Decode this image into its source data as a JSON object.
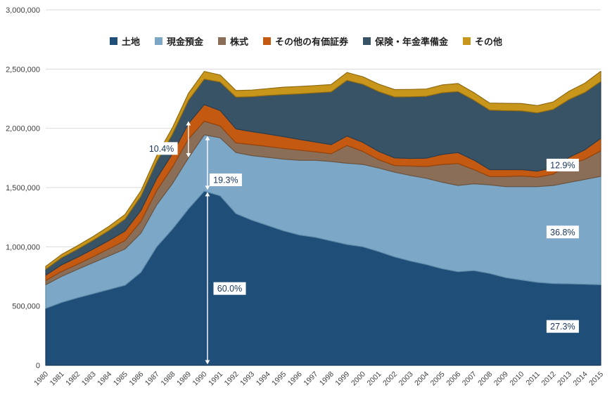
{
  "chart_data": {
    "type": "area",
    "stacked": true,
    "title": "",
    "xlabel": "",
    "ylabel": "",
    "grid": "horizontal",
    "legend_position": "top",
    "ylim": [
      0,
      3000000
    ],
    "yticks": [
      {
        "value": 0,
        "label": "0"
      },
      {
        "value": 500000,
        "label": "500,000"
      },
      {
        "value": 1000000,
        "label": "1,000,000"
      },
      {
        "value": 1500000,
        "label": "1,500,000"
      },
      {
        "value": 2000000,
        "label": "2,000,000"
      },
      {
        "value": 2500000,
        "label": "2,500,000"
      },
      {
        "value": 3000000,
        "label": "3,000,000"
      }
    ],
    "x": [
      1980,
      1981,
      1982,
      1983,
      1984,
      1985,
      1986,
      1987,
      1988,
      1989,
      1990,
      1991,
      1992,
      1993,
      1994,
      1995,
      1996,
      1997,
      1998,
      1999,
      2000,
      2001,
      2002,
      2003,
      2004,
      2005,
      2006,
      2007,
      2008,
      2009,
      2010,
      2011,
      2012,
      2013,
      2014,
      2015
    ],
    "series": [
      {
        "name": "土地",
        "key": "land",
        "color": "#1f4e79",
        "edge": "#16395a",
        "values": [
          480000,
          530000,
          570000,
          605000,
          640000,
          675000,
          785000,
          1000000,
          1150000,
          1320000,
          1470000,
          1430000,
          1280000,
          1225000,
          1180000,
          1135000,
          1100000,
          1080000,
          1050000,
          1020000,
          1000000,
          960000,
          915000,
          880000,
          850000,
          815000,
          790000,
          800000,
          775000,
          740000,
          720000,
          700000,
          690000,
          688000,
          684000,
          680000
        ]
      },
      {
        "name": "現金預金",
        "key": "cash-deposits",
        "color": "#7da7c6",
        "edge": "#5f8cab",
        "values": [
          200000,
          220000,
          240000,
          262000,
          284000,
          306000,
          330000,
          355000,
          385000,
          430000,
          475000,
          490000,
          515000,
          545000,
          575000,
          605000,
          630000,
          650000,
          670000,
          685000,
          695000,
          705000,
          715000,
          722000,
          728000,
          730000,
          728000,
          732000,
          748000,
          768000,
          788000,
          808000,
          828000,
          855000,
          885000,
          915000
        ]
      },
      {
        "name": "株式",
        "key": "stocks",
        "color": "#8a6e57",
        "edge": "#6b5440",
        "values": [
          35000,
          42000,
          42000,
          50000,
          60000,
          72000,
          100000,
          120000,
          140000,
          160000,
          115000,
          100000,
          82000,
          92000,
          92000,
          90000,
          86000,
          72000,
          66000,
          150000,
          110000,
          70000,
          56000,
          80000,
          100000,
          150000,
          185000,
          120000,
          70000,
          85000,
          90000,
          80000,
          95000,
          150000,
          170000,
          215000
        ]
      },
      {
        "name": "その他の有価証券",
        "key": "other-securities",
        "color": "#c45a11",
        "edge": "#95430c",
        "values": [
          45000,
          55000,
          60000,
          64000,
          70000,
          80000,
          92000,
          102000,
          112000,
          130000,
          140000,
          130000,
          118000,
          110000,
          105000,
          100000,
          90000,
          82000,
          76000,
          80000,
          76000,
          70000,
          64000,
          64000,
          70000,
          85000,
          92000,
          80000,
          58000,
          58000,
          54000,
          50000,
          56000,
          62000,
          80000,
          105000
        ]
      },
      {
        "name": "保険・年金準備金",
        "key": "insurance-pension-reserves",
        "color": "#395366",
        "edge": "#293e4e",
        "values": [
          50000,
          60000,
          67000,
          75000,
          85000,
          100000,
          120000,
          142000,
          165000,
          195000,
          215000,
          240000,
          268000,
          295000,
          325000,
          355000,
          385000,
          415000,
          445000,
          470000,
          490000,
          505000,
          515000,
          520000,
          522000,
          520000,
          515000,
          505000,
          502000,
          498000,
          495000,
          492000,
          490000,
          488000,
          484000,
          480000
        ]
      },
      {
        "name": "その他",
        "key": "others",
        "color": "#c9961c",
        "edge": "#8f6a10",
        "values": [
          25000,
          28000,
          30000,
          32000,
          35000,
          40000,
          45000,
          50000,
          55000,
          60000,
          65000,
          60000,
          56000,
          56000,
          58000,
          62000,
          62000,
          62000,
          62000,
          66000,
          64000,
          63000,
          62000,
          62000,
          62000,
          66000,
          68000,
          64000,
          60000,
          62000,
          62000,
          62000,
          64000,
          70000,
          78000,
          86000
        ]
      }
    ],
    "annotations": {
      "arrow_color": "#ffffff",
      "arrows": [
        {
          "year": 1989.0,
          "from": 1755000,
          "to": 2060000,
          "for": "10.4%"
        },
        {
          "year": 1990.2,
          "from": 1480000,
          "to": 1935000,
          "for": "19.3%"
        },
        {
          "year": 1990.2,
          "from": 8000,
          "to": 1462000,
          "for": "60.0%"
        }
      ],
      "labels": [
        {
          "year": 1987.3,
          "value": 1830000,
          "text": "10.4%"
        },
        {
          "year": 1991.35,
          "value": 1565000,
          "text": "19.3%"
        },
        {
          "year": 1991.6,
          "value": 648000,
          "text": "60.0%"
        },
        {
          "year": 2012.6,
          "value": 1690000,
          "text": "12.9%"
        },
        {
          "year": 2012.6,
          "value": 1125000,
          "text": "36.8%"
        },
        {
          "year": 2012.6,
          "value": 328000,
          "text": "27.3%"
        }
      ],
      "label_text_color": "#17365d",
      "label_bg_color": "#ffffff"
    },
    "axis_text_color": "#404040",
    "gridline_color": "#d9d9d9",
    "axis_line_color": "#bfbfbf"
  }
}
